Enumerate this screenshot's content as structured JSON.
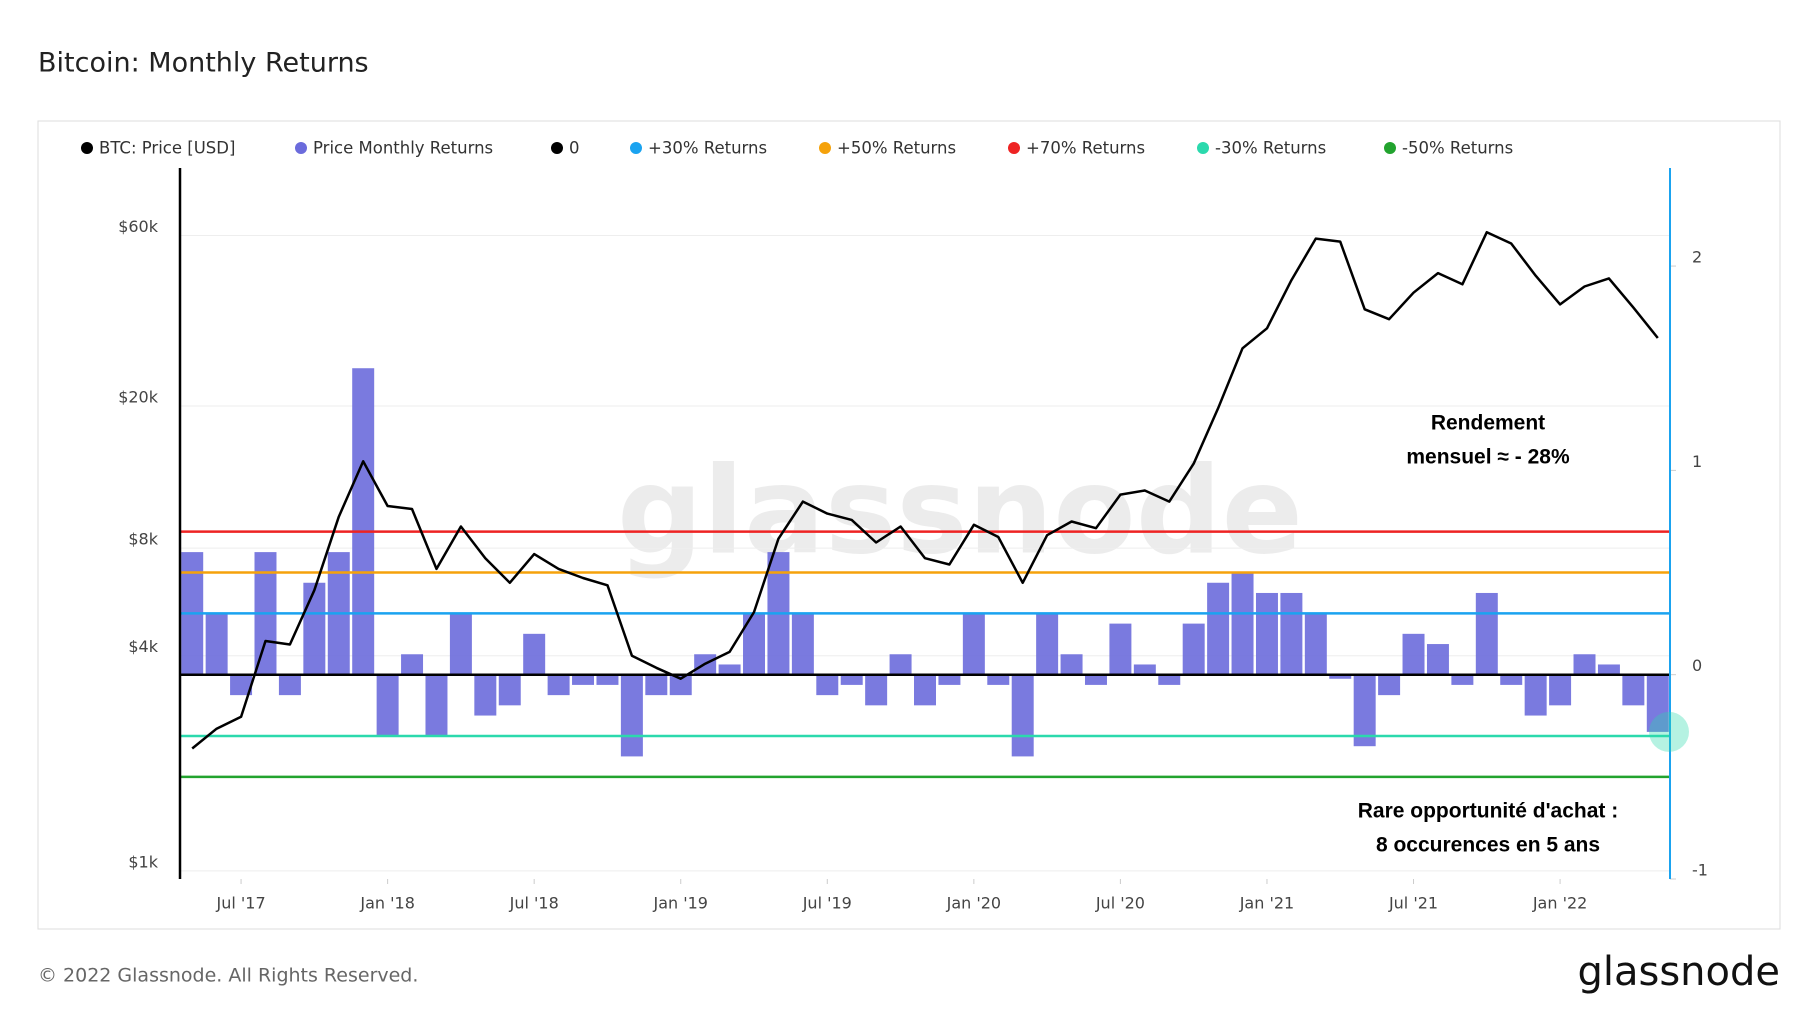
{
  "chart_data": {
    "type": "combo",
    "title": "Bitcoin: Monthly Returns",
    "x": [
      "2017-05",
      "2017-06",
      "2017-07",
      "2017-08",
      "2017-09",
      "2017-10",
      "2017-11",
      "2017-12",
      "2018-01",
      "2018-02",
      "2018-03",
      "2018-04",
      "2018-05",
      "2018-06",
      "2018-07",
      "2018-08",
      "2018-09",
      "2018-10",
      "2018-11",
      "2018-12",
      "2019-01",
      "2019-02",
      "2019-03",
      "2019-04",
      "2019-05",
      "2019-06",
      "2019-07",
      "2019-08",
      "2019-09",
      "2019-10",
      "2019-11",
      "2019-12",
      "2020-01",
      "2020-02",
      "2020-03",
      "2020-04",
      "2020-05",
      "2020-06",
      "2020-07",
      "2020-08",
      "2020-09",
      "2020-10",
      "2020-11",
      "2020-12",
      "2021-01",
      "2021-02",
      "2021-03",
      "2021-04",
      "2021-05",
      "2021-06",
      "2021-07",
      "2021-08",
      "2021-09",
      "2021-10",
      "2021-11",
      "2021-12",
      "2022-01",
      "2022-02",
      "2022-03",
      "2022-04",
      "2022-05"
    ],
    "xlim": [
      "2017-05",
      "2022-05"
    ],
    "xticks": [
      {
        "value": "2017-07",
        "label": "Jul '17"
      },
      {
        "value": "2018-01",
        "label": "Jan '18"
      },
      {
        "value": "2018-07",
        "label": "Jul '18"
      },
      {
        "value": "2019-01",
        "label": "Jan '19"
      },
      {
        "value": "2019-07",
        "label": "Jul '19"
      },
      {
        "value": "2020-01",
        "label": "Jan '20"
      },
      {
        "value": "2020-07",
        "label": "Jul '20"
      },
      {
        "value": "2021-01",
        "label": "Jan '21"
      },
      {
        "value": "2021-07",
        "label": "Jul '21"
      },
      {
        "value": "2022-01",
        "label": "Jan '22"
      }
    ],
    "yscale": "log",
    "ylim": [
      949,
      92700
    ],
    "yticks": [
      {
        "value": 1000,
        "label": "$1k"
      },
      {
        "value": 4000,
        "label": "$4k"
      },
      {
        "value": 8000,
        "label": "$8k"
      },
      {
        "value": 20000,
        "label": "$20k"
      },
      {
        "value": 60000,
        "label": "$60k"
      }
    ],
    "y2lim": [
      -1,
      2.48
    ],
    "y2ticks": [
      -1,
      0,
      1,
      2
    ],
    "series": [
      {
        "name": "BTC: Price [USD]",
        "type": "line",
        "color": "#000000",
        "values": [
          2200,
          2500,
          2700,
          4400,
          4300,
          6100,
          9800,
          14000,
          10500,
          10300,
          7000,
          9200,
          7500,
          6400,
          7700,
          7000,
          6600,
          6300,
          4000,
          3700,
          3450,
          3800,
          4100,
          5300,
          8500,
          10800,
          10000,
          9600,
          8300,
          9200,
          7500,
          7200,
          9300,
          8600,
          6400,
          8700,
          9500,
          9100,
          11300,
          11600,
          10800,
          13800,
          19700,
          29000,
          33000,
          45000,
          58800,
          57700,
          37300,
          35000,
          41500,
          47100,
          43800,
          61300,
          57000,
          46300,
          38500,
          43200,
          45500,
          37700,
          31000
        ]
      },
      {
        "name": "Price Monthly Returns",
        "type": "bar",
        "axis": "y2",
        "color": "#6b6bdc",
        "values": [
          0.6,
          0.3,
          -0.1,
          0.6,
          -0.1,
          0.45,
          0.6,
          1.5,
          -0.3,
          0.1,
          -0.3,
          0.3,
          -0.2,
          -0.15,
          0.2,
          -0.1,
          -0.05,
          -0.05,
          -0.4,
          -0.1,
          -0.1,
          0.1,
          0.05,
          0.3,
          0.6,
          0.3,
          -0.1,
          -0.05,
          -0.15,
          0.1,
          -0.15,
          -0.05,
          0.3,
          -0.05,
          -0.4,
          0.3,
          0.1,
          -0.05,
          0.25,
          0.05,
          -0.05,
          0.25,
          0.45,
          0.5,
          0.4,
          0.4,
          0.3,
          -0.02,
          -0.35,
          -0.1,
          0.2,
          0.15,
          -0.05,
          0.4,
          -0.05,
          -0.2,
          -0.15,
          0.1,
          0.05,
          -0.15,
          -0.28
        ]
      }
    ],
    "levels": [
      {
        "name": "0",
        "color": "#000000",
        "value": 0
      },
      {
        "name": "+30% Returns",
        "color": "#1aa3f0",
        "value": 0.3
      },
      {
        "name": "+50% Returns",
        "color": "#f5a20b",
        "value": 0.5
      },
      {
        "name": "+70% Returns",
        "color": "#ee2323",
        "value": 0.7
      },
      {
        "name": "-30% Returns",
        "color": "#2bd9ad",
        "value": -0.3
      },
      {
        "name": "-50% Returns",
        "color": "#22a32e",
        "value": -0.5
      }
    ],
    "annotations": [
      {
        "lines": [
          "Rendement",
          "mensuel ≈ - 28%"
        ]
      },
      {
        "lines": [
          "Rare opportunité d'achat :",
          "8 occurences en 5 ans"
        ]
      }
    ]
  },
  "footer": {
    "copyright": "© 2022 Glassnode. All Rights Reserved.",
    "brand": "glassnode"
  }
}
